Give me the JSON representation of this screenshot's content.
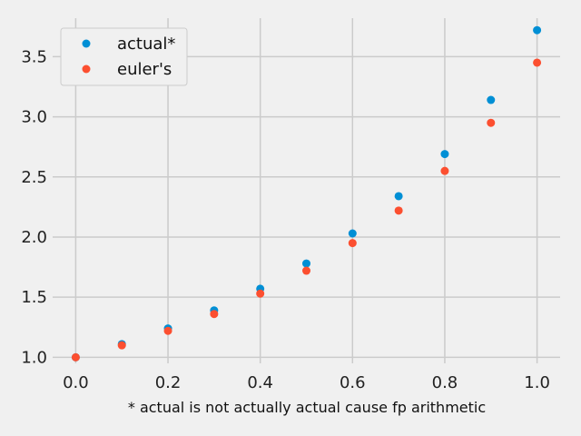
{
  "chart_data": {
    "type": "scatter",
    "title": "",
    "xlabel": "* actual is not actually actual cause fp arithmetic",
    "ylabel": "",
    "xlim": [
      -0.05,
      1.05
    ],
    "ylim": [
      0.95,
      3.82
    ],
    "xticks": [
      0.0,
      0.2,
      0.4,
      0.6,
      0.8,
      1.0
    ],
    "xtick_labels": [
      "0.0",
      "0.2",
      "0.4",
      "0.6",
      "0.8",
      "1.0"
    ],
    "yticks": [
      1.0,
      1.5,
      2.0,
      2.5,
      3.0,
      3.5
    ],
    "ytick_labels": [
      "1.0",
      "1.5",
      "2.0",
      "2.5",
      "3.0",
      "3.5"
    ],
    "grid": true,
    "legend_position": "top-left",
    "x": [
      0.0,
      0.1,
      0.2,
      0.3,
      0.4,
      0.5,
      0.6,
      0.7,
      0.8,
      0.9,
      1.0
    ],
    "series": [
      {
        "name": "actual*",
        "color": "#008fd5",
        "values": [
          1.0,
          1.11,
          1.24,
          1.39,
          1.57,
          1.78,
          2.03,
          2.34,
          2.69,
          3.14,
          3.72
        ]
      },
      {
        "name": "euler's",
        "color": "#fc4f30",
        "values": [
          1.0,
          1.1,
          1.22,
          1.36,
          1.53,
          1.72,
          1.95,
          2.22,
          2.55,
          2.95,
          3.45
        ]
      }
    ]
  }
}
